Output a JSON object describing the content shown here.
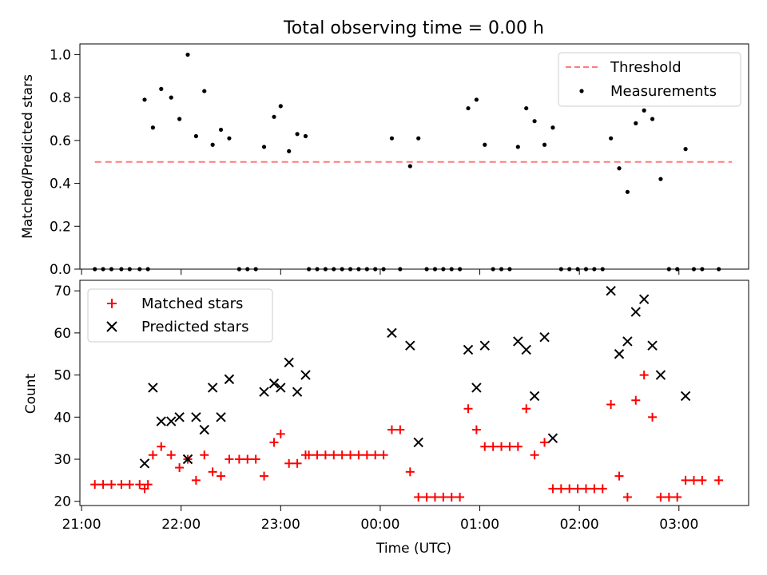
{
  "chart_data": [
    {
      "type": "scatter",
      "title": "Total observing time = 0.00 h",
      "xlabel": "",
      "ylabel": "Matched/Predicted stars",
      "xlim": [
        "20:59",
        "03:42"
      ],
      "ylim": [
        0,
        1.05
      ],
      "yticks": [
        "0.0",
        "0.2",
        "0.4",
        "0.6",
        "0.8",
        "1.0"
      ],
      "legend_position": "top-right",
      "threshold": {
        "name": "Threshold",
        "x": [
          "21:08",
          "03:32"
        ],
        "y": 0.5,
        "color": "#ff7b7b"
      },
      "series": [
        {
          "name": "Measurements",
          "color": "#000000",
          "points": [
            [
              "21:08",
              0
            ],
            [
              "21:13",
              0
            ],
            [
              "21:18",
              0
            ],
            [
              "21:24",
              0
            ],
            [
              "21:29",
              0
            ],
            [
              "21:35",
              0
            ],
            [
              "21:40",
              0
            ],
            [
              "21:38",
              0.79
            ],
            [
              "21:43",
              0.66
            ],
            [
              "21:48",
              0.84
            ],
            [
              "21:54",
              0.8
            ],
            [
              "21:59",
              0.7
            ],
            [
              "22:04",
              1.0
            ],
            [
              "22:09",
              0.62
            ],
            [
              "22:14",
              0.83
            ],
            [
              "22:19",
              0.58
            ],
            [
              "22:24",
              0.65
            ],
            [
              "22:29",
              0.61
            ],
            [
              "22:35",
              0
            ],
            [
              "22:40",
              0
            ],
            [
              "22:45",
              0
            ],
            [
              "22:50",
              0.57
            ],
            [
              "22:56",
              0.71
            ],
            [
              "23:00",
              0.76
            ],
            [
              "23:05",
              0.55
            ],
            [
              "23:10",
              0.63
            ],
            [
              "23:15",
              0.62
            ],
            [
              "23:17",
              0
            ],
            [
              "23:22",
              0
            ],
            [
              "23:27",
              0
            ],
            [
              "23:32",
              0
            ],
            [
              "23:37",
              0
            ],
            [
              "23:42",
              0
            ],
            [
              "23:47",
              0
            ],
            [
              "23:52",
              0
            ],
            [
              "23:57",
              0
            ],
            [
              "00:02",
              0
            ],
            [
              "00:07",
              0.61
            ],
            [
              "00:12",
              0
            ],
            [
              "00:18",
              0.48
            ],
            [
              "00:23",
              0.61
            ],
            [
              "00:28",
              0
            ],
            [
              "00:33",
              0
            ],
            [
              "00:38",
              0
            ],
            [
              "00:43",
              0
            ],
            [
              "00:48",
              0
            ],
            [
              "00:53",
              0.75
            ],
            [
              "00:58",
              0.79
            ],
            [
              "01:03",
              0.58
            ],
            [
              "01:08",
              0
            ],
            [
              "01:13",
              0
            ],
            [
              "01:18",
              0
            ],
            [
              "01:23",
              0.57
            ],
            [
              "01:28",
              0.75
            ],
            [
              "01:33",
              0.69
            ],
            [
              "01:39",
              0.58
            ],
            [
              "01:44",
              0.66
            ],
            [
              "01:49",
              0
            ],
            [
              "01:54",
              0
            ],
            [
              "01:59",
              0
            ],
            [
              "02:04",
              0
            ],
            [
              "02:09",
              0
            ],
            [
              "02:14",
              0
            ],
            [
              "02:19",
              0.61
            ],
            [
              "02:24",
              0.47
            ],
            [
              "02:29",
              0.36
            ],
            [
              "02:34",
              0.68
            ],
            [
              "02:39",
              0.74
            ],
            [
              "02:44",
              0.7
            ],
            [
              "02:49",
              0.42
            ],
            [
              "02:54",
              0
            ],
            [
              "02:59",
              0
            ],
            [
              "03:04",
              0.56
            ],
            [
              "03:09",
              0
            ],
            [
              "03:14",
              0
            ],
            [
              "03:24",
              0
            ]
          ]
        }
      ]
    },
    {
      "type": "scatter",
      "title": "",
      "xlabel": "Time (UTC)",
      "ylabel": "Count",
      "xlim": [
        "20:59",
        "03:42"
      ],
      "xticks": [
        "21:00",
        "22:00",
        "23:00",
        "00:00",
        "01:00",
        "02:00",
        "03:00"
      ],
      "ylim": [
        19,
        72.5
      ],
      "yticks": [
        "20",
        "30",
        "40",
        "50",
        "60",
        "70"
      ],
      "legend_position": "top-left",
      "series": [
        {
          "name": "Matched stars",
          "color": "#ff0000",
          "marker": "plus",
          "points": [
            [
              "21:08",
              24
            ],
            [
              "21:13",
              24
            ],
            [
              "21:18",
              24
            ],
            [
              "21:24",
              24
            ],
            [
              "21:29",
              24
            ],
            [
              "21:35",
              24
            ],
            [
              "21:40",
              24
            ],
            [
              "21:38",
              23
            ],
            [
              "21:43",
              31
            ],
            [
              "21:48",
              33
            ],
            [
              "21:54",
              31
            ],
            [
              "21:59",
              28
            ],
            [
              "22:04",
              30
            ],
            [
              "22:09",
              25
            ],
            [
              "22:14",
              31
            ],
            [
              "22:19",
              27
            ],
            [
              "22:24",
              26
            ],
            [
              "22:29",
              30
            ],
            [
              "22:35",
              30
            ],
            [
              "22:40",
              30
            ],
            [
              "22:45",
              30
            ],
            [
              "22:50",
              26
            ],
            [
              "22:56",
              34
            ],
            [
              "23:00",
              36
            ],
            [
              "23:05",
              29
            ],
            [
              "23:10",
              29
            ],
            [
              "23:15",
              31
            ],
            [
              "23:17",
              31
            ],
            [
              "23:22",
              31
            ],
            [
              "23:27",
              31
            ],
            [
              "23:32",
              31
            ],
            [
              "23:37",
              31
            ],
            [
              "23:42",
              31
            ],
            [
              "23:47",
              31
            ],
            [
              "23:52",
              31
            ],
            [
              "23:57",
              31
            ],
            [
              "00:02",
              31
            ],
            [
              "00:07",
              37
            ],
            [
              "00:12",
              37
            ],
            [
              "00:18",
              27
            ],
            [
              "00:23",
              21
            ],
            [
              "00:28",
              21
            ],
            [
              "00:33",
              21
            ],
            [
              "00:38",
              21
            ],
            [
              "00:43",
              21
            ],
            [
              "00:48",
              21
            ],
            [
              "00:53",
              42
            ],
            [
              "00:58",
              37
            ],
            [
              "01:03",
              33
            ],
            [
              "01:08",
              33
            ],
            [
              "01:13",
              33
            ],
            [
              "01:18",
              33
            ],
            [
              "01:23",
              33
            ],
            [
              "01:28",
              42
            ],
            [
              "01:33",
              31
            ],
            [
              "01:39",
              34
            ],
            [
              "01:44",
              23
            ],
            [
              "01:49",
              23
            ],
            [
              "01:54",
              23
            ],
            [
              "01:59",
              23
            ],
            [
              "02:04",
              23
            ],
            [
              "02:09",
              23
            ],
            [
              "02:14",
              23
            ],
            [
              "02:19",
              43
            ],
            [
              "02:24",
              26
            ],
            [
              "02:29",
              21
            ],
            [
              "02:34",
              44
            ],
            [
              "02:39",
              50
            ],
            [
              "02:44",
              40
            ],
            [
              "02:49",
              21
            ],
            [
              "02:54",
              21
            ],
            [
              "02:59",
              21
            ],
            [
              "03:04",
              25
            ],
            [
              "03:09",
              25
            ],
            [
              "03:14",
              25
            ],
            [
              "03:24",
              25
            ]
          ]
        },
        {
          "name": "Predicted stars",
          "color": "#000000",
          "marker": "x",
          "points": [
            [
              "21:38",
              29
            ],
            [
              "21:43",
              47
            ],
            [
              "21:48",
              39
            ],
            [
              "21:54",
              39
            ],
            [
              "21:59",
              40
            ],
            [
              "22:04",
              30
            ],
            [
              "22:09",
              40
            ],
            [
              "22:14",
              37
            ],
            [
              "22:19",
              47
            ],
            [
              "22:24",
              40
            ],
            [
              "22:29",
              49
            ],
            [
              "22:50",
              46
            ],
            [
              "22:56",
              48
            ],
            [
              "23:00",
              47
            ],
            [
              "23:05",
              53
            ],
            [
              "23:10",
              46
            ],
            [
              "23:15",
              50
            ],
            [
              "00:07",
              60
            ],
            [
              "00:18",
              57
            ],
            [
              "00:23",
              34
            ],
            [
              "00:53",
              56
            ],
            [
              "00:58",
              47
            ],
            [
              "01:03",
              57
            ],
            [
              "01:23",
              58
            ],
            [
              "01:28",
              56
            ],
            [
              "01:33",
              45
            ],
            [
              "01:39",
              59
            ],
            [
              "01:44",
              35
            ],
            [
              "02:19",
              70
            ],
            [
              "02:24",
              55
            ],
            [
              "02:29",
              58
            ],
            [
              "02:34",
              65
            ],
            [
              "02:39",
              68
            ],
            [
              "02:44",
              57
            ],
            [
              "02:49",
              50
            ],
            [
              "03:04",
              45
            ]
          ]
        }
      ]
    }
  ]
}
